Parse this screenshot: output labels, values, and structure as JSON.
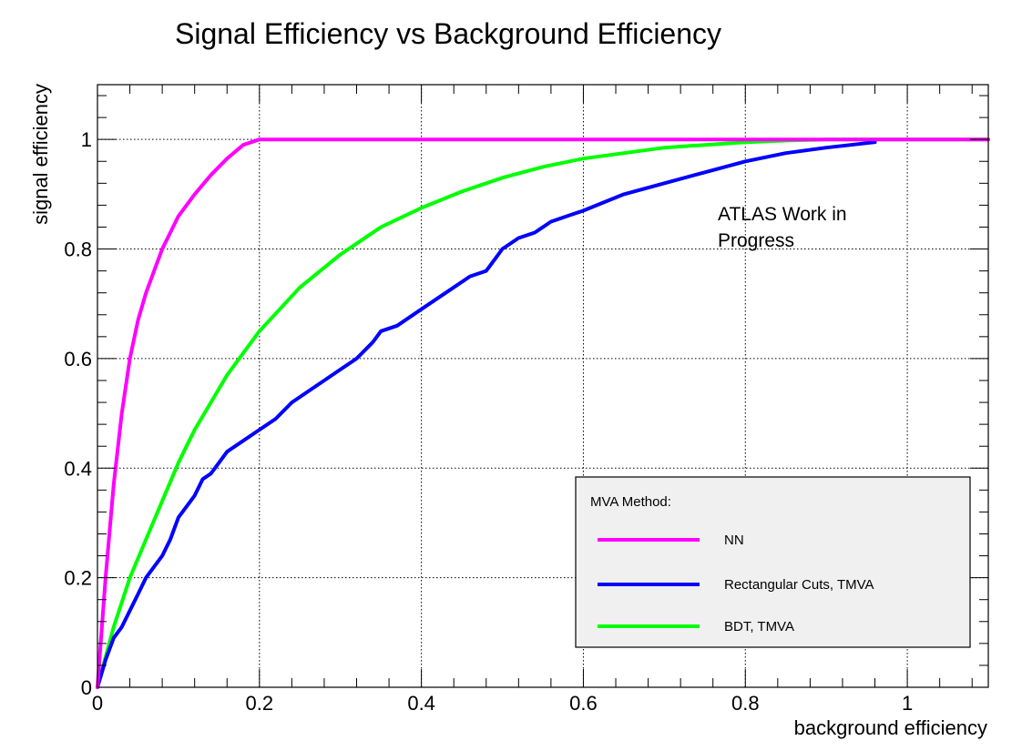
{
  "chart_data": {
    "type": "line",
    "title": "Signal Efficiency vs Background Efficiency",
    "xlabel": "background efficiency",
    "ylabel": "signal efficiency",
    "xlim": [
      0,
      1.1
    ],
    "ylim": [
      0,
      1.1
    ],
    "x_ticks": [
      {
        "value": 0,
        "label": "0"
      },
      {
        "value": 0.2,
        "label": "0.2"
      },
      {
        "value": 0.4,
        "label": "0.4"
      },
      {
        "value": 0.6,
        "label": "0.6"
      },
      {
        "value": 0.8,
        "label": "0.8"
      },
      {
        "value": 1,
        "label": "1"
      }
    ],
    "y_ticks": [
      {
        "value": 0,
        "label": "0"
      },
      {
        "value": 0.2,
        "label": "0.2"
      },
      {
        "value": 0.4,
        "label": "0.4"
      },
      {
        "value": 0.6,
        "label": "0.6"
      },
      {
        "value": 0.8,
        "label": "0.8"
      },
      {
        "value": 1,
        "label": "1"
      }
    ],
    "grid": true,
    "annotation": [
      "ATLAS Work in",
      "Progress"
    ],
    "legend": {
      "title": "MVA Method:",
      "placement": "bottom-right",
      "entries": [
        "NN",
        "Rectangular Cuts, TMVA",
        "BDT, TMVA"
      ]
    },
    "series": [
      {
        "name": "NN",
        "color": "#ff00ff",
        "x": [
          0,
          0.005,
          0.01,
          0.02,
          0.03,
          0.04,
          0.05,
          0.06,
          0.07,
          0.08,
          0.09,
          0.1,
          0.12,
          0.14,
          0.16,
          0.18,
          0.2,
          0.22,
          0.3,
          0.5,
          0.7,
          0.9,
          1.1
        ],
        "y": [
          0,
          0.1,
          0.2,
          0.37,
          0.5,
          0.6,
          0.67,
          0.72,
          0.76,
          0.8,
          0.83,
          0.86,
          0.9,
          0.935,
          0.965,
          0.99,
          1.0,
          1.0,
          1.0,
          1.0,
          1.0,
          1.0,
          1.0
        ]
      },
      {
        "name": "Rectangular Cuts, TMVA",
        "color": "#0000ff",
        "x": [
          0,
          0.01,
          0.02,
          0.03,
          0.04,
          0.05,
          0.06,
          0.07,
          0.08,
          0.09,
          0.1,
          0.11,
          0.12,
          0.13,
          0.14,
          0.15,
          0.16,
          0.17,
          0.18,
          0.2,
          0.22,
          0.24,
          0.26,
          0.28,
          0.3,
          0.32,
          0.34,
          0.35,
          0.37,
          0.4,
          0.42,
          0.44,
          0.46,
          0.48,
          0.49,
          0.5,
          0.52,
          0.54,
          0.56,
          0.58,
          0.6,
          0.65,
          0.7,
          0.75,
          0.8,
          0.85,
          0.9,
          0.93,
          0.96
        ],
        "y": [
          0,
          0.05,
          0.09,
          0.11,
          0.14,
          0.17,
          0.2,
          0.22,
          0.24,
          0.27,
          0.31,
          0.33,
          0.35,
          0.38,
          0.39,
          0.41,
          0.43,
          0.44,
          0.45,
          0.47,
          0.49,
          0.52,
          0.54,
          0.56,
          0.58,
          0.6,
          0.63,
          0.65,
          0.66,
          0.69,
          0.71,
          0.73,
          0.75,
          0.76,
          0.78,
          0.8,
          0.82,
          0.83,
          0.85,
          0.86,
          0.87,
          0.9,
          0.92,
          0.94,
          0.96,
          0.975,
          0.985,
          0.99,
          0.995
        ]
      },
      {
        "name": "BDT, TMVA",
        "color": "#00ff00",
        "x": [
          0,
          0.02,
          0.04,
          0.06,
          0.08,
          0.1,
          0.12,
          0.14,
          0.16,
          0.18,
          0.2,
          0.25,
          0.3,
          0.35,
          0.4,
          0.45,
          0.5,
          0.55,
          0.6,
          0.65,
          0.7,
          0.75,
          0.8,
          0.85,
          0.9,
          0.95,
          1.0,
          1.05,
          1.1
        ],
        "y": [
          0,
          0.11,
          0.2,
          0.27,
          0.34,
          0.41,
          0.47,
          0.52,
          0.57,
          0.61,
          0.65,
          0.73,
          0.79,
          0.84,
          0.875,
          0.905,
          0.93,
          0.95,
          0.965,
          0.975,
          0.985,
          0.99,
          0.995,
          0.998,
          1.0,
          1.0,
          1.0,
          1.0,
          1.0
        ]
      }
    ]
  }
}
